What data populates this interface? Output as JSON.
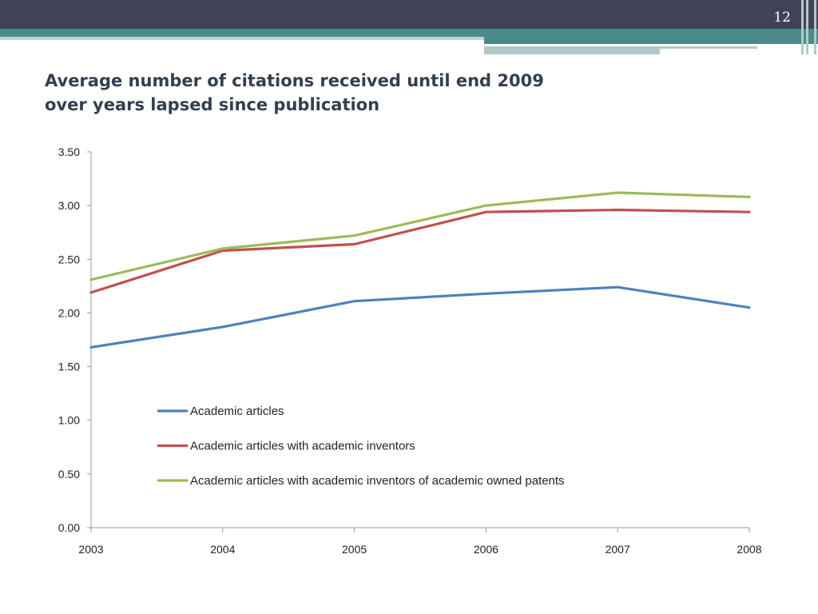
{
  "slide": {
    "page_number": "12",
    "title_line1": "Average number of citations received until end 2009",
    "title_line2": "over years lapsed since publication"
  },
  "colors": {
    "header": "#424256",
    "accent": "#4c8a8a",
    "accent_light": "#b2c8c8"
  },
  "chart_data": {
    "type": "line",
    "x": [
      "2003",
      "2004",
      "2005",
      "2006",
      "2007",
      "2008"
    ],
    "series": [
      {
        "name": "Academic articles",
        "color": "#4f81bd",
        "values": [
          1.68,
          1.87,
          2.11,
          2.18,
          2.24,
          2.05
        ]
      },
      {
        "name": "Academic articles with academic inventors",
        "color": "#c0504d",
        "values": [
          2.19,
          2.58,
          2.64,
          2.94,
          2.96,
          2.94
        ]
      },
      {
        "name": "Academic articles with academic inventors of academic owned patents",
        "color": "#9bbb59",
        "values": [
          2.31,
          2.6,
          2.72,
          3.0,
          3.12,
          3.08
        ]
      }
    ],
    "yticks": [
      "0.00",
      "0.50",
      "1.00",
      "1.50",
      "2.00",
      "2.50",
      "3.00",
      "3.50"
    ],
    "ylim": [
      0,
      3.5
    ],
    "grid": false,
    "legend": "inside, center-bottom"
  }
}
